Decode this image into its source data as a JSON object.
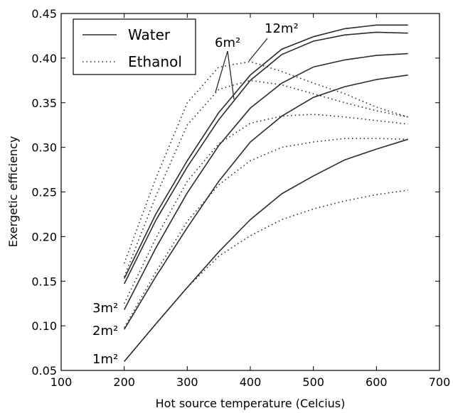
{
  "chart_data": {
    "type": "line",
    "title": "",
    "xlabel": "Hot source temperature (Celcius)",
    "ylabel": "Exergetic efficiency",
    "xlim": [
      100,
      700
    ],
    "ylim": [
      0.05,
      0.45
    ],
    "xticks": [
      "100",
      "200",
      "300",
      "400",
      "500",
      "600",
      "700"
    ],
    "yticks": [
      "0.05",
      "0.10",
      "0.15",
      "0.20",
      "0.25",
      "0.30",
      "0.35",
      "0.40",
      "0.45"
    ],
    "grid": false,
    "legend": {
      "placement": "top-left",
      "entries": [
        {
          "label": "Water",
          "style": "solid"
        },
        {
          "label": "Ethanol",
          "style": "dotted"
        }
      ]
    },
    "annotations": [
      "1m²",
      "2m²",
      "3m²",
      "6m²",
      "12m²"
    ],
    "x": [
      200,
      250,
      300,
      350,
      400,
      450,
      500,
      550,
      600,
      650
    ],
    "series": [
      {
        "fluid": "Water",
        "area": "1m²",
        "style": "solid",
        "values": [
          0.06,
          0.102,
          0.143,
          0.183,
          0.219,
          0.248,
          0.268,
          0.286,
          0.298,
          0.309
        ]
      },
      {
        "fluid": "Water",
        "area": "2m²",
        "style": "solid",
        "values": [
          0.096,
          0.155,
          0.21,
          0.262,
          0.306,
          0.335,
          0.356,
          0.368,
          0.376,
          0.381
        ]
      },
      {
        "fluid": "Water",
        "area": "3m²",
        "style": "solid",
        "values": [
          0.118,
          0.187,
          0.249,
          0.302,
          0.344,
          0.372,
          0.39,
          0.398,
          0.403,
          0.405
        ]
      },
      {
        "fluid": "Water",
        "area": "6m²",
        "style": "solid",
        "values": [
          0.147,
          0.218,
          0.278,
          0.331,
          0.375,
          0.404,
          0.419,
          0.426,
          0.429,
          0.428
        ]
      },
      {
        "fluid": "Water",
        "area": "12m²",
        "style": "solid",
        "values": [
          0.153,
          0.225,
          0.285,
          0.339,
          0.381,
          0.41,
          0.424,
          0.433,
          0.437,
          0.437
        ]
      },
      {
        "fluid": "Ethanol",
        "area": "1m²",
        "style": "dotted",
        "values": [
          0.06,
          0.102,
          0.143,
          0.178,
          0.201,
          0.219,
          0.231,
          0.24,
          0.247,
          0.252
        ]
      },
      {
        "fluid": "Ethanol",
        "area": "2m²",
        "style": "dotted",
        "values": [
          0.098,
          0.16,
          0.217,
          0.258,
          0.285,
          0.3,
          0.306,
          0.31,
          0.31,
          0.309
        ]
      },
      {
        "fluid": "Ethanol",
        "area": "3m²",
        "style": "dotted",
        "values": [
          0.125,
          0.198,
          0.262,
          0.304,
          0.327,
          0.335,
          0.337,
          0.334,
          0.33,
          0.326
        ]
      },
      {
        "fluid": "Ethanol",
        "area": "6m²",
        "style": "dotted",
        "values": [
          0.155,
          0.245,
          0.325,
          0.365,
          0.375,
          0.37,
          0.36,
          0.35,
          0.341,
          0.334
        ]
      },
      {
        "fluid": "Ethanol",
        "area": "12m²",
        "style": "dotted",
        "values": [
          0.17,
          0.265,
          0.35,
          0.39,
          0.396,
          0.385,
          0.372,
          0.36,
          0.345,
          0.334
        ]
      }
    ]
  },
  "colors": {
    "line": "#2b2b2b",
    "axis": "#000000",
    "background": "#ffffff"
  }
}
